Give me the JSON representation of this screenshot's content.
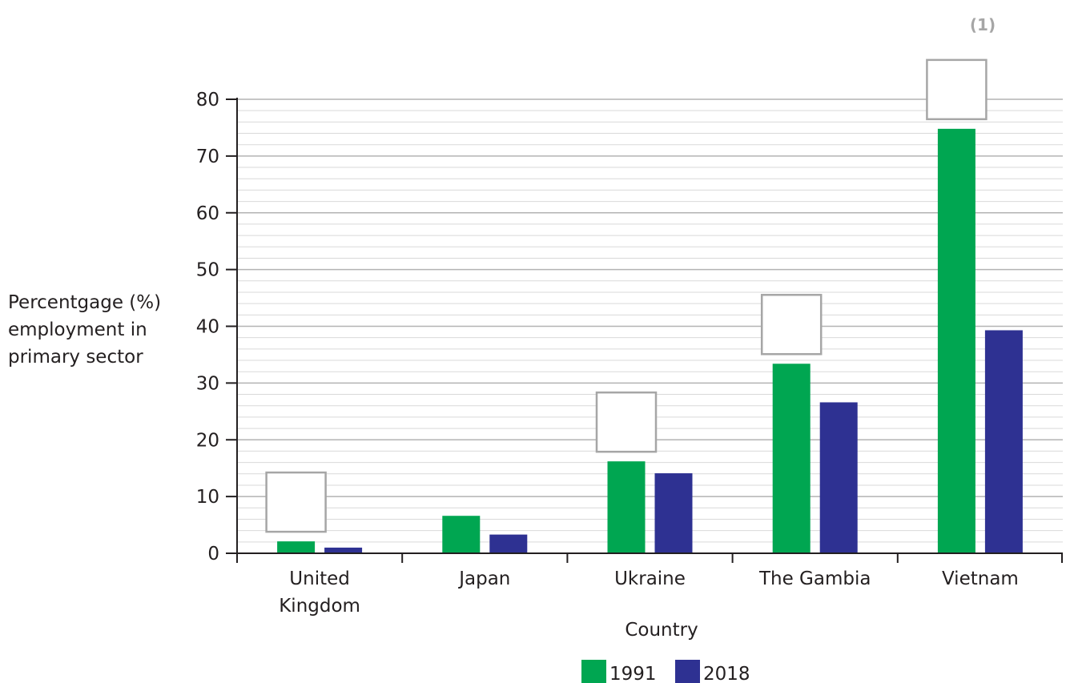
{
  "chart_data": {
    "type": "bar",
    "title": "",
    "xlabel": "Country",
    "ylabel": "Percentgage (%) employment in primary sector",
    "ylabel_lines": [
      "Percentgage (%)",
      "employment in",
      "primary sector"
    ],
    "categories": [
      "United Kingdom",
      "Japan",
      "Ukraine",
      "The Gambia",
      "Vietnam"
    ],
    "category_lines": [
      [
        "United",
        "Kingdom"
      ],
      [
        "Japan"
      ],
      [
        "Ukraine"
      ],
      [
        "The Gambia"
      ],
      [
        "Vietnam"
      ]
    ],
    "series": [
      {
        "name": "1991",
        "values": [
          2.1,
          6.6,
          16.2,
          33.4,
          74.8
        ],
        "color": "#00a651"
      },
      {
        "name": "2018",
        "values": [
          1.0,
          3.3,
          14.1,
          26.6,
          39.3
        ],
        "color": "#2e3192"
      }
    ],
    "ylim": [
      0,
      80
    ],
    "yticks": [
      0,
      10,
      20,
      30,
      40,
      50,
      60,
      70,
      80
    ],
    "grid": "on",
    "legend": "bottom",
    "marks_text": "(1)",
    "answer_boxes_over": [
      "United Kingdom",
      "Ukraine",
      "The Gambia",
      "Vietnam"
    ]
  }
}
